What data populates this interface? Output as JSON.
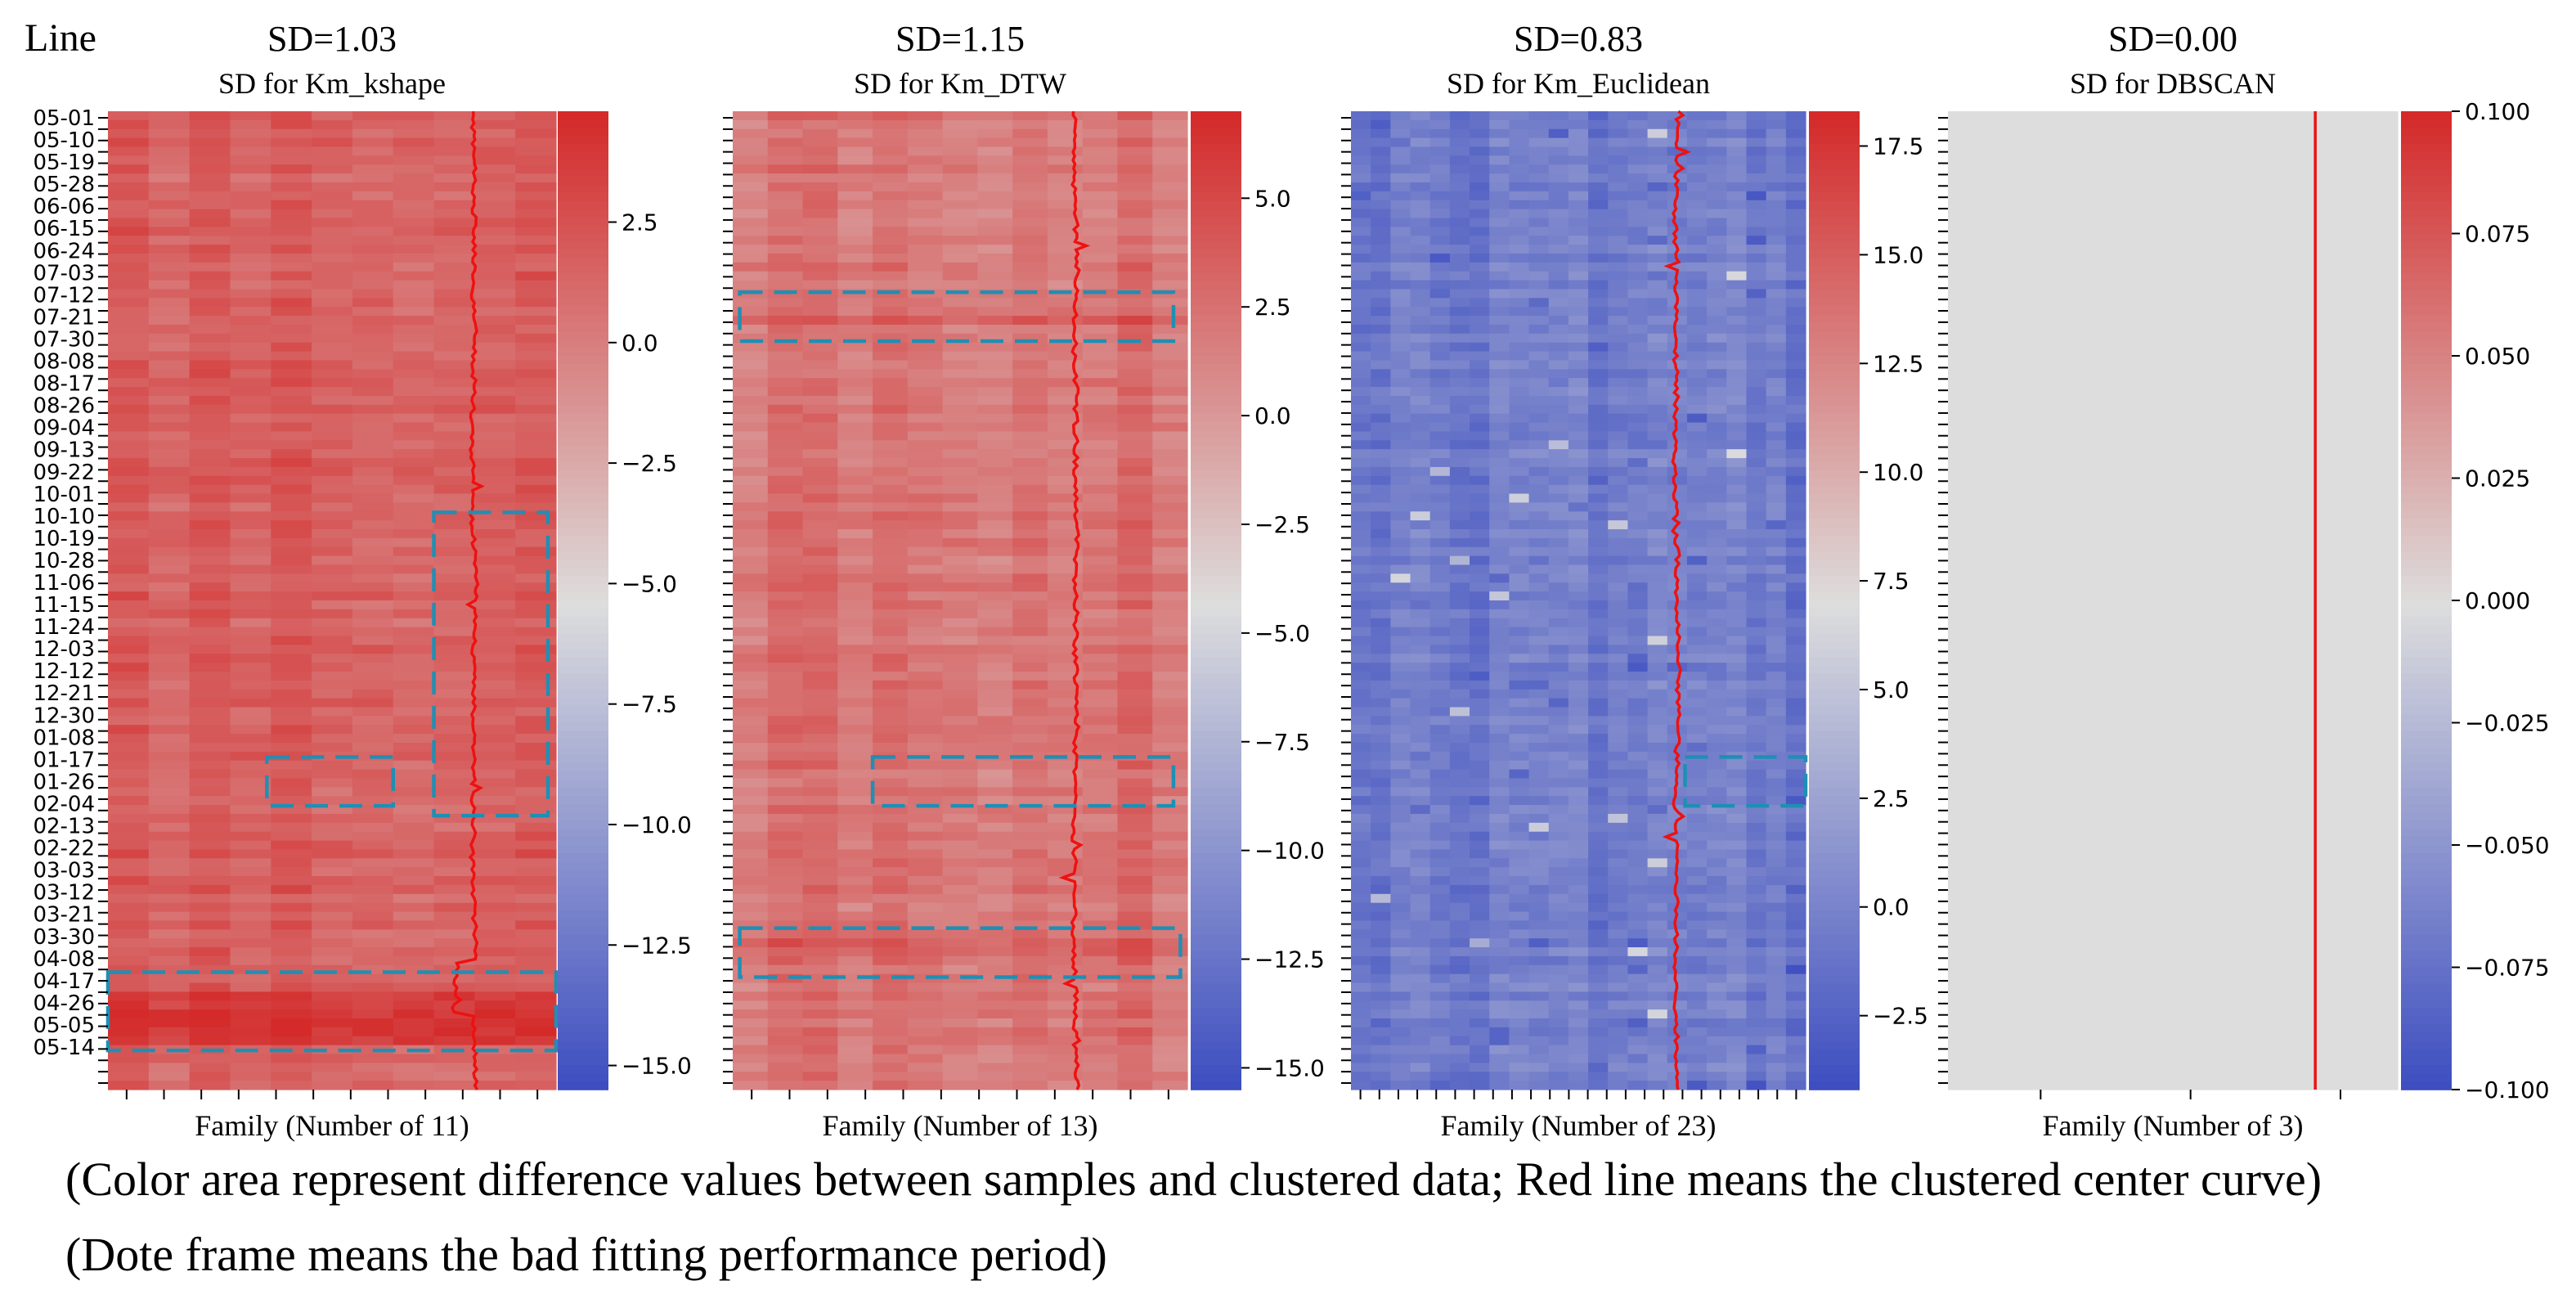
{
  "line_label": "Line",
  "captions": [
    "(Color area represent difference values between samples and clustered data; Red line means the clustered center curve)",
    "(Dote frame means the bad fitting performance period)"
  ],
  "colors": {
    "red_line": "#ee1111",
    "frame": "#1f8fb4",
    "cmap_low": "#3b4cc0",
    "cmap_mid": "#dddddd",
    "cmap_high": "#d42a2a"
  },
  "chart_data": [
    {
      "type": "heatmap",
      "title": "SD for Km_kshape",
      "sd_label": "SD=1.03",
      "xlabel": "Family (Number of 11)",
      "n_columns": 11,
      "date_labels": [
        "05-01",
        "05-10",
        "05-19",
        "05-28",
        "06-06",
        "06-15",
        "06-24",
        "07-03",
        "07-12",
        "07-21",
        "07-30",
        "08-08",
        "08-17",
        "08-26",
        "09-04",
        "09-13",
        "09-22",
        "10-01",
        "10-10",
        "10-19",
        "10-28",
        "11-06",
        "11-15",
        "11-24",
        "12-03",
        "12-12",
        "12-21",
        "12-30",
        "01-08",
        "01-17",
        "01-26",
        "02-04",
        "02-13",
        "02-22",
        "03-03",
        "03-12",
        "03-21",
        "03-30",
        "04-08",
        "04-17",
        "04-26",
        "05-05",
        "05-14"
      ],
      "vmin": -15.5,
      "vmax": 4.8,
      "colorbar_ticks": [
        2.5,
        0.0,
        -2.5,
        -5.0,
        -7.5,
        -10.0,
        -12.5,
        -15.0
      ],
      "colorbar_tick_labels": [
        "2.5",
        "0.0",
        "−2.5",
        "−5.0",
        "−7.5",
        "−10.0",
        "−12.5",
        "−15.0"
      ],
      "base_value": 1.8,
      "red_line_column": 9.0,
      "dashed_frames": [
        {
          "col_start": 8.0,
          "col_end": 10.8,
          "row_start": 0.41,
          "row_end": 0.72
        },
        {
          "col_start": 3.9,
          "col_end": 7.0,
          "row_start": 0.66,
          "row_end": 0.71
        },
        {
          "col_start": 0.0,
          "col_end": 11.0,
          "row_start": 0.88,
          "row_end": 0.96
        }
      ]
    },
    {
      "type": "heatmap",
      "title": "SD for Km_DTW",
      "sd_label": "SD=1.15",
      "xlabel": "Family (Number of 13)",
      "n_columns": 13,
      "vmin": -15.5,
      "vmax": 7.0,
      "colorbar_ticks": [
        5.0,
        2.5,
        0.0,
        -2.5,
        -5.0,
        -7.5,
        -10.0,
        -12.5,
        -15.0
      ],
      "colorbar_tick_labels": [
        "5.0",
        "2.5",
        "0.0",
        "−2.5",
        "−5.0",
        "−7.5",
        "−10.0",
        "−12.5",
        "−15.0"
      ],
      "base_value": 2.5,
      "red_line_column": 9.8,
      "dashed_frames": [
        {
          "col_start": 0.2,
          "col_end": 12.6,
          "row_start": 0.185,
          "row_end": 0.235
        },
        {
          "col_start": 4.0,
          "col_end": 12.6,
          "row_start": 0.66,
          "row_end": 0.71
        },
        {
          "col_start": 0.2,
          "col_end": 12.8,
          "row_start": 0.835,
          "row_end": 0.885
        }
      ]
    },
    {
      "type": "heatmap",
      "title": "SD for Km_Euclidean",
      "sd_label": "SD=0.83",
      "xlabel": "Family (Number of 23)",
      "n_columns": 23,
      "vmin": -4.2,
      "vmax": 18.3,
      "colorbar_ticks": [
        17.5,
        15.0,
        12.5,
        10.0,
        7.5,
        5.0,
        2.5,
        0.0,
        -2.5
      ],
      "colorbar_tick_labels": [
        "17.5",
        "15.0",
        "12.5",
        "10.0",
        "7.5",
        "5.0",
        "2.5",
        "0.0",
        "−2.5"
      ],
      "base_value": -0.5,
      "red_line_column": 16.5,
      "dashed_frames": [
        {
          "col_start": 16.9,
          "col_end": 23.0,
          "row_start": 0.66,
          "row_end": 0.71
        }
      ]
    },
    {
      "type": "heatmap",
      "title": "SD for DBSCAN",
      "sd_label": "SD=0.00",
      "xlabel": "Family (Number of 3)",
      "n_columns": 3,
      "vmin": -0.1,
      "vmax": 0.1,
      "colorbar_ticks": [
        0.1,
        0.075,
        0.05,
        0.025,
        0.0,
        -0.025,
        -0.05,
        -0.075,
        -0.1
      ],
      "colorbar_tick_labels": [
        "0.100",
        "0.075",
        "0.050",
        "0.025",
        "0.000",
        "−0.025",
        "−0.050",
        "−0.075",
        "−0.100"
      ],
      "base_value": 0.0,
      "red_line_column": 2.45,
      "dashed_frames": []
    }
  ]
}
